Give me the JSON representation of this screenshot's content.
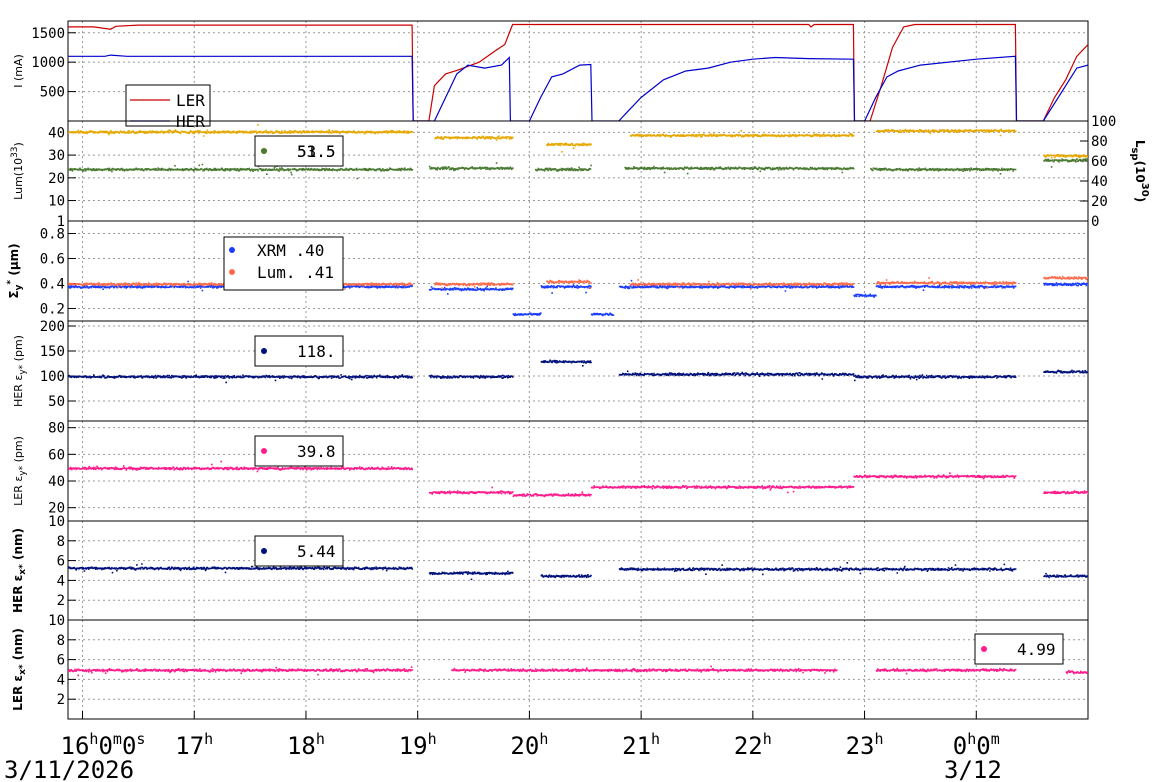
{
  "chart_data": {
    "type": "scatter",
    "time_axis": {
      "ticks": [
        {
          "label": "16",
          "sup": "h",
          "extra": "0",
          "extra_sup": "m",
          "extra2": "0",
          "extra2_sup": "s",
          "hour": 16
        },
        {
          "label": "17",
          "sup": "h",
          "hour": 17
        },
        {
          "label": "18",
          "sup": "h",
          "hour": 18
        },
        {
          "label": "19",
          "sup": "h",
          "hour": 19
        },
        {
          "label": "20",
          "sup": "h",
          "hour": 20
        },
        {
          "label": "21",
          "sup": "h",
          "hour": 21
        },
        {
          "label": "22",
          "sup": "h",
          "hour": 22
        },
        {
          "label": "23",
          "sup": "h",
          "hour": 23
        },
        {
          "label": "0",
          "sup": "h",
          "extra": "0",
          "extra_sup": "m",
          "hour": 24
        }
      ],
      "date_left": "3/11/2026",
      "date_right": "3/12",
      "range_hours": [
        15.87,
        25.0
      ]
    },
    "colors": {
      "ler": "#cc0000",
      "her": "#0000cc",
      "lum": "#e6a800",
      "lsp": "#4a7a32",
      "xrm": "#1a3cff",
      "lumemit": "#ff6a4a",
      "navy": "#00107a",
      "pink": "#ff1a8c"
    },
    "panels": [
      {
        "id": "current",
        "ylabel": "I (mA)",
        "ylabel_bold": false,
        "ylim": [
          0,
          1700
        ],
        "yticks": [
          500,
          1000,
          1500
        ],
        "legend": [
          {
            "label": "LER",
            "color": "#cc0000"
          },
          {
            "label": "HER",
            "color": "#0000cc"
          }
        ]
      },
      {
        "id": "luminosity",
        "ylabel": "Lum(10",
        "ylabel_sup": "33",
        "ylabel_end": ")",
        "ylabel_bold": false,
        "ylim": [
          1,
          45
        ],
        "yticks": [
          1,
          10,
          20,
          30,
          40
        ],
        "ylabel_right": "L",
        "ylabel_right_sub": "sp",
        "ylabel_right_mid": "(10",
        "ylabel_right_sup": "30",
        "ylabel_right_end": ")",
        "ylim_right": [
          0,
          100
        ],
        "yticks_right": [
          0,
          20,
          40,
          60,
          80,
          100
        ],
        "readout": [
          {
            "value": "53.5",
            "color": "#e6a800"
          },
          {
            "value": "51.5",
            "color": "#4a7a32"
          }
        ]
      },
      {
        "id": "sigma",
        "ylabel": "Σ",
        "ylabel_sub": "y",
        "ylabel_sup": "*",
        "ylabel_end": " (μm)",
        "ylabel_bold": true,
        "ylim": [
          0.1,
          0.9
        ],
        "yticks": [
          0.2,
          0.4,
          0.6,
          0.8
        ],
        "legend": [
          {
            "label": "XRM",
            "value": ".40",
            "color": "#1a3cff"
          },
          {
            "label": "Lum.",
            "value": ".41",
            "color": "#ff6a4a"
          }
        ]
      },
      {
        "id": "her_eps_y",
        "ylabel": "HER ε",
        "ylabel_sub": "y*",
        "ylabel_end": " (pm)",
        "ylabel_bold": false,
        "ylim": [
          10,
          210
        ],
        "yticks": [
          50,
          100,
          150,
          200
        ],
        "readout": [
          {
            "value": "118.",
            "color": "#00107a"
          }
        ]
      },
      {
        "id": "ler_eps_y",
        "ylabel": "LER ε",
        "ylabel_sub": "y*",
        "ylabel_end": " (pm)",
        "ylabel_bold": false,
        "ylim": [
          10,
          85
        ],
        "yticks": [
          10,
          20,
          40,
          60,
          80
        ],
        "readout": [
          {
            "value": "39.8",
            "color": "#ff1a8c"
          }
        ]
      },
      {
        "id": "her_eps_x",
        "ylabel": "HER ε",
        "ylabel_sub": "x*",
        "ylabel_end": " (nm)",
        "ylabel_bold": true,
        "ylim": [
          0,
          10
        ],
        "yticks": [
          2,
          4,
          6,
          8
        ],
        "readout": [
          {
            "value": "5.44",
            "color": "#00107a"
          }
        ]
      },
      {
        "id": "ler_eps_x",
        "ylabel": "LER ε",
        "ylabel_sub": "x*",
        "ylabel_end": " (nm)",
        "ylabel_bold": true,
        "ylim": [
          0,
          10
        ],
        "yticks": [
          2,
          4,
          6,
          8,
          10
        ],
        "readout": [
          {
            "value": "4.99",
            "color": "#ff1a8c"
          }
        ]
      }
    ],
    "series": [
      {
        "panel": 0,
        "name": "LER",
        "color": "#cc0000",
        "kind": "line",
        "points": [
          [
            15.87,
            1600
          ],
          [
            16.1,
            1600
          ],
          [
            16.25,
            1560
          ],
          [
            16.3,
            1610
          ],
          [
            16.5,
            1630
          ],
          [
            18.95,
            1630
          ],
          [
            18.96,
            0
          ],
          [
            19.1,
            0
          ],
          [
            19.15,
            600
          ],
          [
            19.25,
            800
          ],
          [
            19.35,
            860
          ],
          [
            19.55,
            1000
          ],
          [
            19.7,
            1200
          ],
          [
            19.78,
            1300
          ],
          [
            19.85,
            1640
          ],
          [
            22.5,
            1640
          ],
          [
            22.52,
            1600
          ],
          [
            22.55,
            1640
          ],
          [
            22.9,
            1640
          ],
          [
            22.91,
            0
          ],
          [
            23.05,
            0
          ],
          [
            23.15,
            600
          ],
          [
            23.25,
            1250
          ],
          [
            23.35,
            1600
          ],
          [
            23.45,
            1640
          ],
          [
            24.35,
            1640
          ],
          [
            24.36,
            0
          ],
          [
            24.6,
            0
          ],
          [
            24.7,
            400
          ],
          [
            24.8,
            700
          ],
          [
            24.9,
            1100
          ],
          [
            25.0,
            1300
          ]
        ]
      },
      {
        "panel": 0,
        "name": "HER",
        "color": "#0000cc",
        "kind": "line",
        "points": [
          [
            15.87,
            1100
          ],
          [
            16.2,
            1100
          ],
          [
            16.25,
            1120
          ],
          [
            16.4,
            1100
          ],
          [
            18.95,
            1100
          ],
          [
            18.96,
            0
          ],
          [
            19.15,
            0
          ],
          [
            19.25,
            400
          ],
          [
            19.35,
            800
          ],
          [
            19.45,
            950
          ],
          [
            19.6,
            900
          ],
          [
            19.75,
            950
          ],
          [
            19.82,
            1080
          ],
          [
            19.83,
            0
          ],
          [
            20.0,
            0
          ],
          [
            20.1,
            400
          ],
          [
            20.2,
            750
          ],
          [
            20.3,
            800
          ],
          [
            20.45,
            950
          ],
          [
            20.55,
            960
          ],
          [
            20.56,
            0
          ],
          [
            20.8,
            0
          ],
          [
            20.9,
            200
          ],
          [
            21.0,
            400
          ],
          [
            21.2,
            700
          ],
          [
            21.4,
            850
          ],
          [
            21.6,
            900
          ],
          [
            21.8,
            1000
          ],
          [
            22.0,
            1050
          ],
          [
            22.2,
            1080
          ],
          [
            22.5,
            1060
          ],
          [
            22.9,
            1050
          ],
          [
            22.91,
            0
          ],
          [
            23.0,
            0
          ],
          [
            23.1,
            400
          ],
          [
            23.2,
            750
          ],
          [
            23.3,
            850
          ],
          [
            23.5,
            950
          ],
          [
            24.0,
            1050
          ],
          [
            24.35,
            1100
          ],
          [
            24.36,
            0
          ],
          [
            24.6,
            0
          ],
          [
            24.7,
            300
          ],
          [
            24.8,
            600
          ],
          [
            24.9,
            900
          ],
          [
            25.0,
            950
          ]
        ]
      },
      {
        "panel": 1,
        "name": "Lum",
        "color": "#e6a800",
        "kind": "scatter",
        "segments": [
          [
            15.87,
            18.95,
            40.5
          ],
          [
            19.15,
            19.85,
            38
          ],
          [
            20.15,
            20.55,
            35
          ],
          [
            20.9,
            22.9,
            39
          ],
          [
            23.1,
            24.35,
            41
          ],
          [
            24.6,
            25.0,
            30
          ]
        ]
      },
      {
        "panel": 1,
        "name": "Lsp",
        "color": "#4a7a32",
        "kind": "scatter",
        "segments": [
          [
            15.87,
            18.95,
            24
          ],
          [
            19.1,
            19.85,
            24.5
          ],
          [
            20.05,
            20.55,
            24
          ],
          [
            20.85,
            22.9,
            24.5
          ],
          [
            23.05,
            24.35,
            24
          ],
          [
            24.6,
            25.0,
            28
          ]
        ]
      },
      {
        "panel": 2,
        "name": "XRM",
        "color": "#1a3cff",
        "kind": "scatter",
        "segments": [
          [
            15.87,
            18.95,
            0.38
          ],
          [
            19.1,
            19.85,
            0.36
          ],
          [
            19.85,
            20.1,
            0.16
          ],
          [
            20.1,
            20.55,
            0.38
          ],
          [
            20.55,
            20.75,
            0.16
          ],
          [
            20.8,
            22.9,
            0.38
          ],
          [
            22.9,
            23.1,
            0.31
          ],
          [
            23.1,
            24.35,
            0.38
          ],
          [
            24.6,
            25.0,
            0.4
          ]
        ]
      },
      {
        "panel": 2,
        "name": "Lum.",
        "color": "#ff6a4a",
        "kind": "scatter",
        "segments": [
          [
            15.87,
            18.95,
            0.4
          ],
          [
            19.15,
            19.85,
            0.4
          ],
          [
            20.15,
            20.55,
            0.42
          ],
          [
            20.9,
            22.9,
            0.4
          ],
          [
            23.1,
            24.35,
            0.41
          ],
          [
            24.6,
            25.0,
            0.45
          ]
        ]
      },
      {
        "panel": 3,
        "name": "HER εy*",
        "color": "#00107a",
        "kind": "scatter",
        "segments": [
          [
            15.87,
            18.95,
            100
          ],
          [
            19.1,
            19.85,
            100
          ],
          [
            20.1,
            20.55,
            130
          ],
          [
            20.8,
            22.9,
            105
          ],
          [
            22.9,
            24.35,
            100
          ],
          [
            24.6,
            25.0,
            110
          ]
        ]
      },
      {
        "panel": 4,
        "name": "LER εy*",
        "color": "#ff1a8c",
        "kind": "scatter",
        "segments": [
          [
            15.87,
            18.95,
            50
          ],
          [
            19.1,
            19.85,
            32
          ],
          [
            19.85,
            20.55,
            30
          ],
          [
            20.55,
            22.9,
            36
          ],
          [
            22.9,
            24.35,
            44
          ],
          [
            24.6,
            25.0,
            32
          ]
        ]
      },
      {
        "panel": 5,
        "name": "HER εx*",
        "color": "#00107a",
        "kind": "scatter",
        "segments": [
          [
            15.87,
            18.95,
            5.3
          ],
          [
            19.1,
            19.85,
            4.8
          ],
          [
            20.1,
            20.55,
            4.5
          ],
          [
            20.8,
            22.9,
            5.2
          ],
          [
            22.9,
            24.35,
            5.2
          ],
          [
            24.6,
            25.0,
            4.5
          ]
        ]
      },
      {
        "panel": 6,
        "name": "LER εx*",
        "color": "#ff1a8c",
        "kind": "scatter",
        "segments": [
          [
            15.87,
            18.95,
            5.0
          ],
          [
            19.3,
            22.75,
            5.0
          ],
          [
            23.1,
            24.35,
            5.0
          ],
          [
            24.8,
            25.0,
            4.8
          ]
        ]
      }
    ]
  }
}
